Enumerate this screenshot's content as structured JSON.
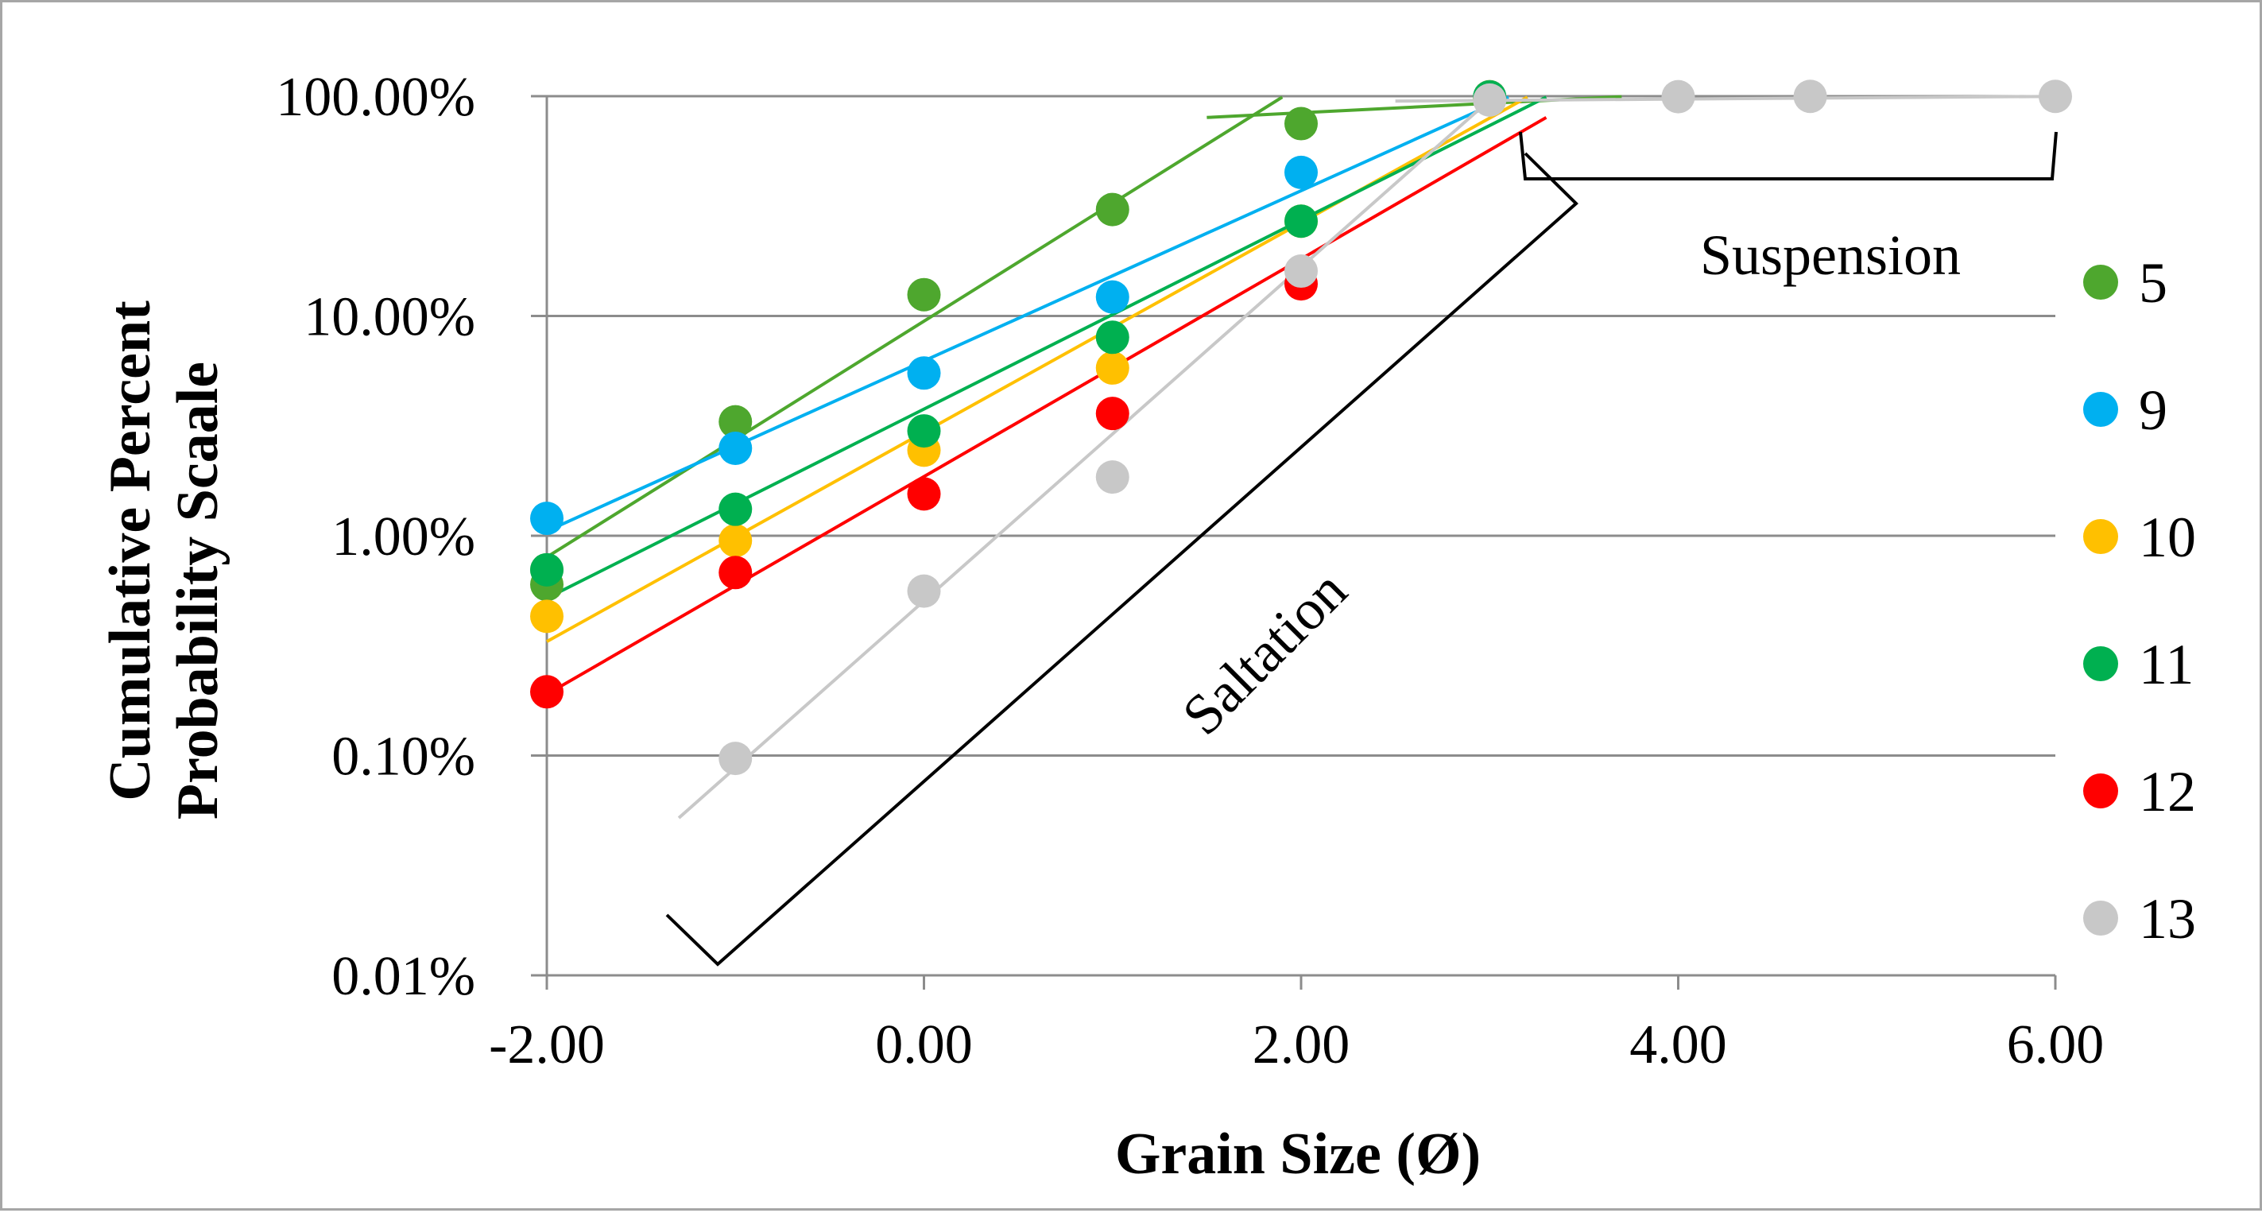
{
  "chart_data": {
    "type": "scatter",
    "title": "",
    "xlabel": "Grain Size (Ø)",
    "ylabel_lines": [
      "Cumulative Percent",
      "Probability Scaale"
    ],
    "xlim": [
      -2,
      6
    ],
    "ylim_percent": [
      0.01,
      100
    ],
    "yscale": "log",
    "grid": "horizontal",
    "legend_position": "right",
    "x_ticks": [
      -2,
      0,
      2,
      4,
      6
    ],
    "x_tick_labels": [
      "-2.00",
      "0.00",
      "2.00",
      "4.00",
      "6.00"
    ],
    "y_ticks": [
      0.01,
      0.1,
      1,
      10,
      100
    ],
    "y_tick_labels": [
      "0.01%",
      "0.10%",
      "1.00%",
      "10.00%",
      "100.00%"
    ],
    "series": [
      {
        "name": "5",
        "color": "#4ea72e",
        "points": [
          [
            -2,
            0.6
          ],
          [
            -2,
            0.7
          ],
          [
            -1,
            3.3
          ],
          [
            0,
            12.5
          ],
          [
            1,
            30.5
          ],
          [
            2,
            75
          ],
          [
            3,
            99.5
          ]
        ],
        "fit_lines": [
          {
            "x": [
              -2,
              1.9
            ],
            "y": [
              0.8,
              99
            ]
          },
          {
            "x": [
              1.5,
              3.7
            ],
            "y": [
              80,
              99.5
            ]
          }
        ]
      },
      {
        "name": "9",
        "color": "#00b0f0",
        "points": [
          [
            -2,
            1.2
          ],
          [
            -1,
            2.5
          ],
          [
            0,
            5.5
          ],
          [
            1,
            12.2
          ],
          [
            2,
            45
          ],
          [
            3,
            99
          ]
        ],
        "fit_lines": [
          {
            "x": [
              -2,
              3.1
            ],
            "y": [
              1.05,
              99
            ]
          }
        ]
      },
      {
        "name": "10",
        "color": "#ffc000",
        "points": [
          [
            -2,
            0.43
          ],
          [
            -1,
            0.95
          ],
          [
            0,
            2.45
          ],
          [
            1,
            5.8
          ],
          [
            2,
            27
          ],
          [
            3,
            98
          ]
        ],
        "fit_lines": [
          {
            "x": [
              -2,
              3.2
            ],
            "y": [
              0.33,
              99
            ]
          }
        ]
      },
      {
        "name": "11",
        "color": "#00b050",
        "points": [
          [
            -2,
            0.7
          ],
          [
            -1,
            1.32
          ],
          [
            0,
            3.0
          ],
          [
            1,
            8.0
          ],
          [
            2,
            27
          ],
          [
            3,
            99
          ]
        ],
        "fit_lines": [
          {
            "x": [
              -2,
              3.3
            ],
            "y": [
              0.52,
              99
            ]
          }
        ]
      },
      {
        "name": "12",
        "color": "#ff0000",
        "points": [
          [
            -2,
            0.195
          ],
          [
            -1,
            0.68
          ],
          [
            0,
            1.55
          ],
          [
            1,
            3.6
          ],
          [
            2,
            14
          ]
        ],
        "fit_lines": [
          {
            "x": [
              -2,
              3.3
            ],
            "y": [
              0.19,
              80
            ]
          }
        ]
      },
      {
        "name": "13",
        "color": "#c8c8c8",
        "points": [
          [
            -1,
            0.097
          ],
          [
            0,
            0.56
          ],
          [
            1,
            1.85
          ],
          [
            2,
            16
          ],
          [
            3,
            96
          ],
          [
            4,
            99.5
          ],
          [
            4.7,
            99.8
          ],
          [
            6,
            99.8
          ]
        ],
        "fit_lines": [
          {
            "x": [
              -1.3,
              3.0
            ],
            "y": [
              0.052,
              96
            ]
          },
          {
            "x": [
              2.5,
              6.0
            ],
            "y": [
              95,
              99.8
            ]
          }
        ]
      }
    ],
    "annotations": [
      {
        "text": "Suspension"
      },
      {
        "text": "Saltation"
      }
    ]
  }
}
